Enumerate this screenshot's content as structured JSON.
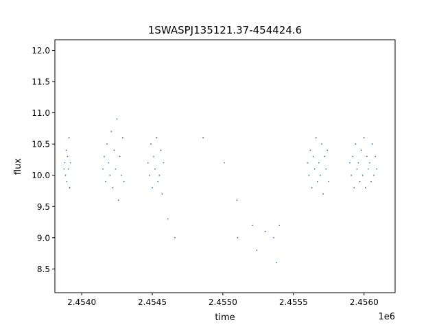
{
  "chart_data": {
    "type": "scatter",
    "title": "1SWASPJ135121.37-454424.6",
    "xlabel": "time",
    "ylabel": "flux",
    "x_offset_label": "1e6",
    "xlim": [
      2453810,
      2456220
    ],
    "ylim": [
      8.12,
      12.17
    ],
    "x_ticks": [
      2454000,
      2454500,
      2455000,
      2455500,
      2456000
    ],
    "x_tick_labels": [
      "2.4540",
      "2.4545",
      "2.4550",
      "2.4555",
      "2.4560"
    ],
    "y_ticks": [
      8.5,
      9.0,
      9.5,
      10.0,
      10.5,
      11.0,
      11.5,
      12.0
    ],
    "y_tick_labels": [
      "8.5",
      "9.0",
      "9.5",
      "10.0",
      "10.5",
      "11.0",
      "11.5",
      "12.0"
    ],
    "grid": false,
    "legend": "none",
    "marker_color": "#1f77b4",
    "series": [
      {
        "x": [
          2453875,
          2453880,
          2453885,
          2453890,
          2453895,
          2453900,
          2453905,
          2453910,
          2453915,
          2453920,
          2454150,
          2454160,
          2454170,
          2454180,
          2454190,
          2454200,
          2454210,
          2454220,
          2454230,
          2454240,
          2454250,
          2454260,
          2454270,
          2454280,
          2454290,
          2454300,
          2454470,
          2454480,
          2454490,
          2454500,
          2454510,
          2454520,
          2454530,
          2454540,
          2454550,
          2454560,
          2454570,
          2454580,
          2454610,
          2454660,
          2454860,
          2455010,
          2455100,
          2455105,
          2455210,
          2455240,
          2455300,
          2455360,
          2455380,
          2455400,
          2455600,
          2455610,
          2455620,
          2455630,
          2455640,
          2455650,
          2455660,
          2455670,
          2455680,
          2455690,
          2455700,
          2455710,
          2455720,
          2455730,
          2455740,
          2455750,
          2455900,
          2455910,
          2455920,
          2455930,
          2455940,
          2455950,
          2455960,
          2455970,
          2455980,
          2455990,
          2456000,
          2456010,
          2456020,
          2456030,
          2456040,
          2456050,
          2456060,
          2456070,
          2456080,
          2456090
        ],
        "y": [
          10.1,
          10.2,
          10.0,
          10.4,
          9.9,
          10.3,
          10.1,
          10.6,
          9.8,
          10.2,
          10.1,
          10.3,
          9.9,
          10.5,
          10.2,
          10.0,
          10.7,
          9.8,
          10.4,
          10.1,
          10.9,
          9.6,
          10.3,
          10.0,
          10.6,
          9.9,
          10.2,
          10.0,
          10.5,
          9.8,
          10.3,
          10.1,
          10.6,
          9.9,
          10.0,
          10.4,
          9.7,
          10.2,
          9.3,
          9.0,
          10.6,
          10.2,
          9.6,
          9.0,
          9.2,
          8.8,
          9.1,
          9.0,
          8.6,
          9.2,
          10.2,
          10.0,
          10.4,
          9.8,
          10.3,
          10.1,
          10.6,
          9.9,
          10.2,
          10.0,
          10.5,
          9.7,
          10.3,
          10.1,
          10.4,
          9.9,
          10.2,
          10.0,
          10.3,
          9.8,
          10.5,
          10.1,
          10.2,
          9.9,
          10.4,
          10.0,
          10.6,
          9.8,
          10.3,
          10.1,
          10.2,
          9.9,
          10.5,
          10.0,
          10.3,
          10.1
        ]
      }
    ]
  }
}
